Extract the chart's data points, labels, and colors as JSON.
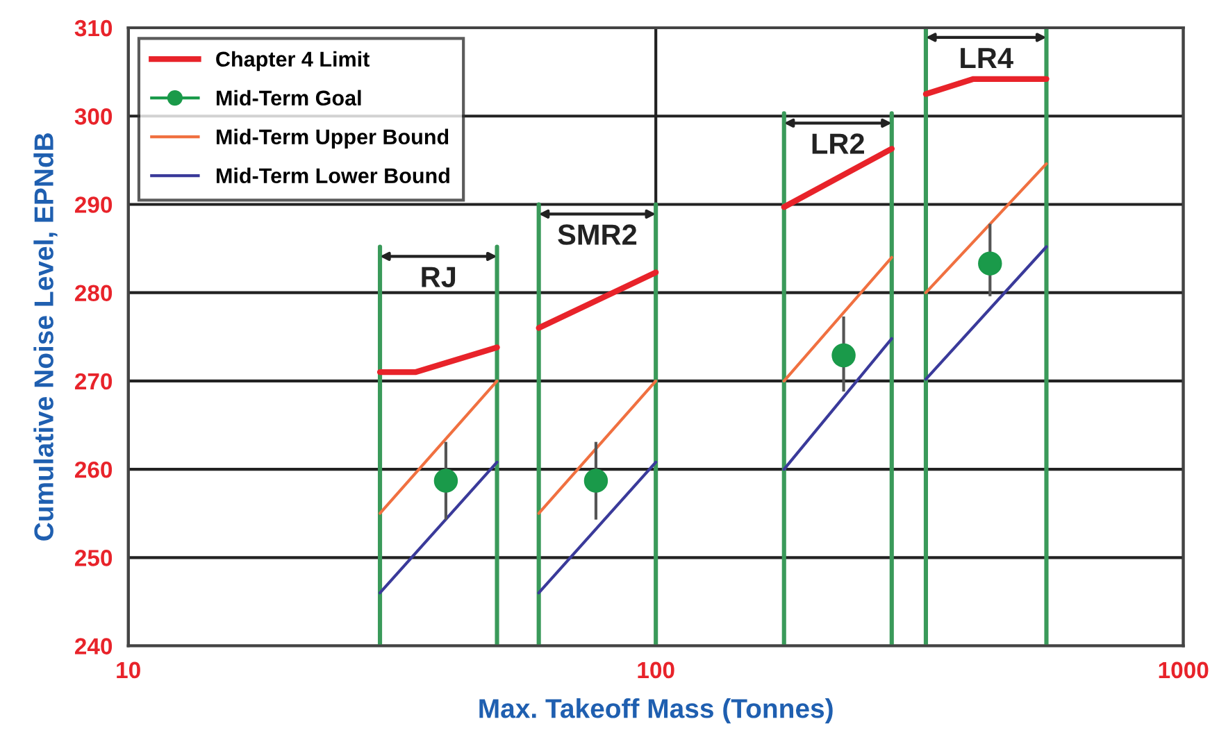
{
  "chart_data": {
    "type": "line",
    "xlabel": "Max. Takeoff Mass (Tonnes)",
    "ylabel": "Cumulative Noise Level, EPNdB",
    "log": "x",
    "xlim": [
      10,
      1000
    ],
    "xticks": [
      10,
      100,
      1000
    ],
    "ylim": [
      240,
      310
    ],
    "yticks": [
      240,
      250,
      260,
      270,
      280,
      290,
      300,
      310
    ],
    "grid": true,
    "legend": "top left",
    "series": [
      {
        "name": "Chapter 4 Limit",
        "color": "#e8232a",
        "x": [
          30,
          35,
          50
        ],
        "values": [
          271,
          271,
          273.8
        ]
      },
      {
        "color": "#e8232a",
        "x": [
          60,
          100
        ],
        "values": [
          276,
          282.3
        ]
      },
      {
        "color": "#e8232a",
        "x": [
          175,
          280
        ],
        "values": [
          289.7,
          296.3
        ]
      },
      {
        "color": "#e8232a",
        "x": [
          325,
          400,
          550
        ],
        "values": [
          302.5,
          304.2,
          304.2
        ]
      },
      {
        "name": "Mid-Term Goal",
        "type": "scatter",
        "marker": "circle",
        "color": "#1a9a4a",
        "x": [
          40,
          77,
          227,
          430
        ],
        "values": [
          258.7,
          258.7,
          272.9,
          283.3
        ],
        "errors": [
          [
            254.3,
            263.1
          ],
          [
            254.3,
            263.1
          ],
          [
            268.8,
            277.3
          ],
          [
            279.6,
            287.8
          ]
        ]
      },
      {
        "name": "Mid-Term Upper Bound",
        "color": "#f07040",
        "x": [
          30,
          50
        ],
        "values": [
          255,
          270
        ]
      },
      {
        "color": "#f07040",
        "x": [
          60,
          100
        ],
        "values": [
          255,
          270
        ]
      },
      {
        "color": "#f07040",
        "x": [
          175,
          280
        ],
        "values": [
          270,
          284
        ]
      },
      {
        "color": "#f07040",
        "x": [
          325,
          550
        ],
        "values": [
          280,
          294.6
        ]
      },
      {
        "name": "Mid-Term Lower Bound",
        "color": "#3a3a9a",
        "x": [
          30,
          50
        ],
        "values": [
          246,
          260.8
        ]
      },
      {
        "color": "#3a3a9a",
        "x": [
          60,
          100
        ],
        "values": [
          246,
          260.8
        ]
      },
      {
        "color": "#3a3a9a",
        "x": [
          175,
          280
        ],
        "values": [
          260,
          274.8
        ]
      },
      {
        "color": "#3a3a9a",
        "x": [
          325,
          550
        ],
        "values": [
          270.2,
          285.2
        ]
      },
      {
        "color": "#3a9a5a",
        "x": [
          30,
          30
        ],
        "values": [
          240,
          285.2
        ]
      },
      {
        "color": "#3a9a5a",
        "x": [
          50,
          50
        ],
        "values": [
          240,
          285.2
        ]
      },
      {
        "color": "#3a9a5a",
        "x": [
          60,
          60
        ],
        "values": [
          240,
          290
        ]
      },
      {
        "color": "#3a9a5a",
        "x": [
          100,
          100
        ],
        "values": [
          240,
          290
        ]
      },
      {
        "color": "#3a9a5a",
        "x": [
          175,
          175
        ],
        "values": [
          240,
          300.3
        ]
      },
      {
        "color": "#3a9a5a",
        "x": [
          280,
          280
        ],
        "values": [
          240,
          300.3
        ]
      },
      {
        "color": "#3a9a5a",
        "x": [
          325,
          325
        ],
        "values": [
          240,
          310
        ]
      },
      {
        "color": "#3a9a5a",
        "x": [
          550,
          550
        ],
        "values": [
          240,
          310
        ]
      }
    ],
    "annotations": [
      "RJ",
      "SMR2",
      "LR2",
      "LR4"
    ]
  }
}
